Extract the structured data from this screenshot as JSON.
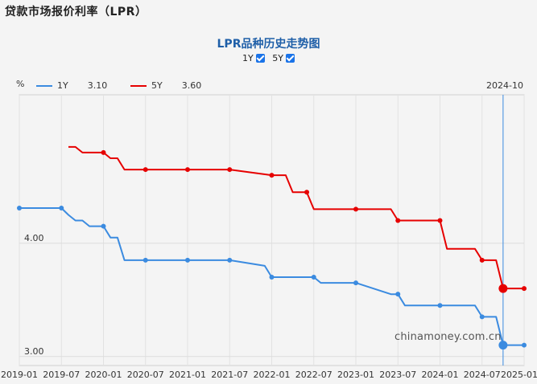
{
  "header": {
    "title": "贷款市场报价利率（LPR）"
  },
  "chart": {
    "title": "LPR品种历史走势图",
    "unit": "%",
    "toggles": [
      {
        "label": "1Y",
        "checked": true
      },
      {
        "label": "5Y",
        "checked": true
      }
    ],
    "legend": [
      {
        "name": "1Y",
        "value": "3.10",
        "color": "#3b8be0"
      },
      {
        "name": "5Y",
        "value": "3.60",
        "color": "#e60000"
      }
    ],
    "cursor_label": "2024-10",
    "watermark": "chinamoney.com.cn"
  },
  "chart_data": {
    "type": "line",
    "x_ticks": [
      "2019-01",
      "2019-07",
      "2020-01",
      "2020-07",
      "2021-01",
      "2021-07",
      "2022-01",
      "2022-07",
      "2023-01",
      "2023-07",
      "2024-01",
      "2024-07",
      "2025-01"
    ],
    "y_ticks": [
      "3.00",
      "4.00"
    ],
    "grid": true,
    "series": [
      {
        "name": "1Y",
        "color": "#3b8be0",
        "points": [
          [
            "2019-01",
            4.31
          ],
          [
            "2019-07",
            4.31
          ],
          [
            "2019-08",
            4.25
          ],
          [
            "2019-09",
            4.2
          ],
          [
            "2019-10",
            4.2
          ],
          [
            "2019-11",
            4.15
          ],
          [
            "2019-12",
            4.15
          ],
          [
            "2020-01",
            4.15
          ],
          [
            "2020-02",
            4.05
          ],
          [
            "2020-03",
            4.05
          ],
          [
            "2020-04",
            3.85
          ],
          [
            "2020-07",
            3.85
          ],
          [
            "2021-01",
            3.85
          ],
          [
            "2021-07",
            3.85
          ],
          [
            "2021-12",
            3.8
          ],
          [
            "2022-01",
            3.7
          ],
          [
            "2022-07",
            3.7
          ],
          [
            "2022-08",
            3.65
          ],
          [
            "2023-01",
            3.65
          ],
          [
            "2023-06",
            3.55
          ],
          [
            "2023-07",
            3.55
          ],
          [
            "2023-08",
            3.45
          ],
          [
            "2024-01",
            3.45
          ],
          [
            "2024-06",
            3.45
          ],
          [
            "2024-07",
            3.35
          ],
          [
            "2024-09",
            3.35
          ],
          [
            "2024-10",
            3.1
          ],
          [
            "2025-01",
            3.1
          ]
        ],
        "markers": [
          [
            "2019-01",
            4.31
          ],
          [
            "2019-07",
            4.31
          ],
          [
            "2020-01",
            4.15
          ],
          [
            "2020-07",
            3.85
          ],
          [
            "2021-01",
            3.85
          ],
          [
            "2021-07",
            3.85
          ],
          [
            "2022-01",
            3.7
          ],
          [
            "2022-07",
            3.7
          ],
          [
            "2023-01",
            3.65
          ],
          [
            "2023-07",
            3.55
          ],
          [
            "2024-01",
            3.45
          ],
          [
            "2024-07",
            3.35
          ],
          [
            "2025-01",
            3.1
          ]
        ]
      },
      {
        "name": "5Y",
        "color": "#e60000",
        "points": [
          [
            "2019-08",
            4.85
          ],
          [
            "2019-09",
            4.85
          ],
          [
            "2019-10",
            4.8
          ],
          [
            "2019-12",
            4.8
          ],
          [
            "2020-01",
            4.8
          ],
          [
            "2020-02",
            4.75
          ],
          [
            "2020-03",
            4.75
          ],
          [
            "2020-04",
            4.65
          ],
          [
            "2020-07",
            4.65
          ],
          [
            "2021-01",
            4.65
          ],
          [
            "2021-07",
            4.65
          ],
          [
            "2022-01",
            4.6
          ],
          [
            "2022-03",
            4.6
          ],
          [
            "2022-04",
            4.45
          ],
          [
            "2022-05",
            4.45
          ],
          [
            "2022-06",
            4.45
          ],
          [
            "2022-07",
            4.3
          ],
          [
            "2023-01",
            4.3
          ],
          [
            "2023-06",
            4.3
          ],
          [
            "2023-07",
            4.2
          ],
          [
            "2024-01",
            4.2
          ],
          [
            "2024-02",
            3.95
          ],
          [
            "2024-06",
            3.95
          ],
          [
            "2024-07",
            3.85
          ],
          [
            "2024-09",
            3.85
          ],
          [
            "2024-10",
            3.6
          ],
          [
            "2025-01",
            3.6
          ]
        ],
        "markers": [
          [
            "2020-01",
            4.8
          ],
          [
            "2020-07",
            4.65
          ],
          [
            "2021-01",
            4.65
          ],
          [
            "2021-07",
            4.65
          ],
          [
            "2022-01",
            4.6
          ],
          [
            "2022-06",
            4.45
          ],
          [
            "2023-01",
            4.3
          ],
          [
            "2023-07",
            4.2
          ],
          [
            "2024-01",
            4.2
          ],
          [
            "2024-07",
            3.85
          ],
          [
            "2025-01",
            3.6
          ]
        ],
        "highlight": [
          "2024-10",
          3.6
        ]
      }
    ],
    "highlight_1y": [
      "2024-10",
      3.1
    ]
  }
}
